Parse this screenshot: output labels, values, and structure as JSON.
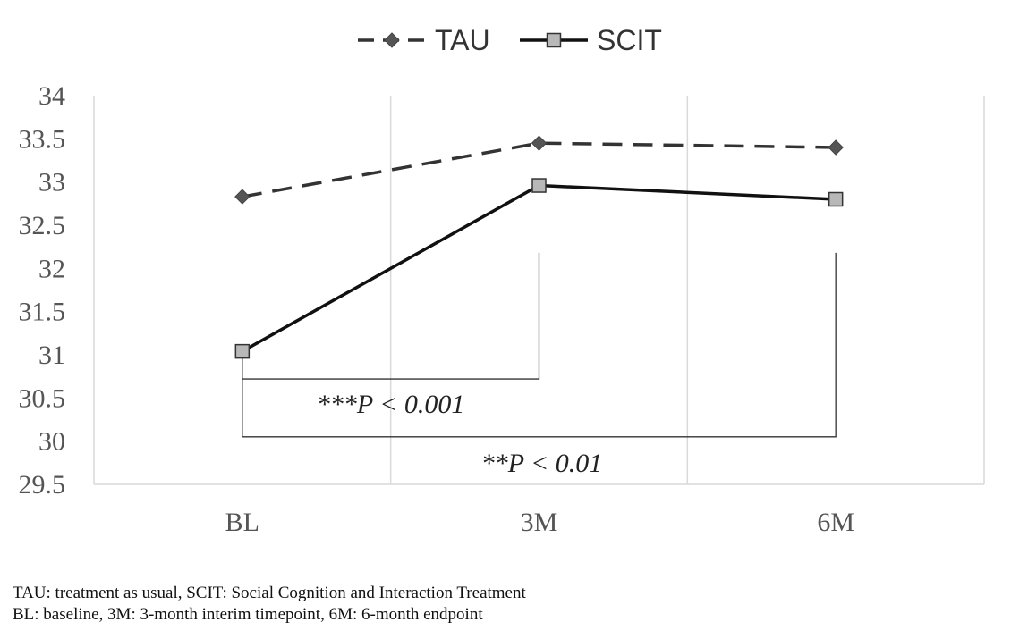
{
  "chart_data": {
    "type": "line",
    "categories": [
      "BL",
      "3M",
      "6M"
    ],
    "ylim": [
      29.5,
      34
    ],
    "yticks": [
      "34",
      "33.5",
      "33",
      "32.5",
      "32",
      "31.5",
      "31",
      "30.5",
      "30",
      "29.5"
    ],
    "ytick_values": [
      34,
      33.5,
      33,
      32.5,
      32,
      31.5,
      31,
      30.5,
      30,
      29.5
    ],
    "grid": "vertical",
    "legend": "top-center",
    "series": [
      {
        "name": "TAU",
        "values": [
          32.83,
          33.45,
          33.4
        ],
        "style": "dashed",
        "marker": "diamond",
        "color": "#333333",
        "marker_color": "#555555"
      },
      {
        "name": "SCIT",
        "values": [
          31.04,
          32.96,
          32.8
        ],
        "style": "solid",
        "marker": "square",
        "color": "#111111",
        "marker_color": "#b8b8b8"
      }
    ],
    "annotations": [
      {
        "prefix": "***",
        "text": "P < 0.001"
      },
      {
        "prefix": "**",
        "text": "P < 0.01"
      }
    ]
  },
  "caption": {
    "line1": "TAU: treatment  as usual, SCIT: Social Cognition and Interaction  Treatment",
    "line2": "BL: baseline, 3M: 3-month  interim timepoint,  6M: 6-month  endpoint"
  }
}
